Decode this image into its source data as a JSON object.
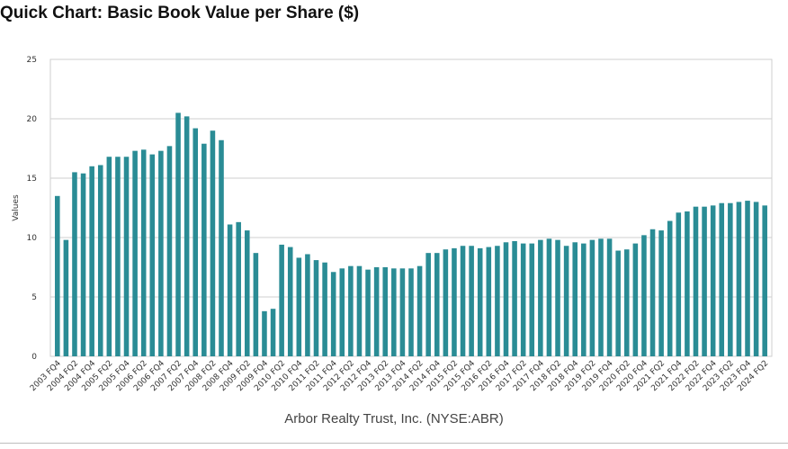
{
  "colors": {
    "bar": "#2a8c95",
    "grid": "#cfcfcf",
    "frame": "#cfcfcf"
  },
  "chart_data": {
    "type": "bar",
    "title": "Quick Chart: Basic Book Value per Share ($)",
    "subtitle": "Arbor Realty Trust, Inc. (NYSE:ABR)",
    "xlabel": "",
    "ylabel": "Values",
    "ylim": [
      0,
      25
    ],
    "yticks": [
      0,
      5,
      10,
      15,
      20,
      25
    ],
    "grid": true,
    "legend": "none",
    "x_tick_labels": [
      "2003 FQ4",
      "2004 FQ2",
      "2004 FQ4",
      "2005 FQ2",
      "2005 FQ4",
      "2006 FQ2",
      "2006 FQ4",
      "2007 FQ2",
      "2007 FQ4",
      "2008 FQ2",
      "2008 FQ4",
      "2009 FQ2",
      "2009 FQ4",
      "2010 FQ2",
      "2010 FQ4",
      "2011 FQ2",
      "2011 FQ4",
      "2012 FQ2",
      "2012 FQ4",
      "2013 FQ2",
      "2013 FQ4",
      "2014 FQ2",
      "2014 FQ4",
      "2015 FQ2",
      "2015 FQ4",
      "2016 FQ2",
      "2016 FQ4",
      "2017 FQ2",
      "2017 FQ4",
      "2018 FQ2",
      "2018 FQ4",
      "2019 FQ2",
      "2019 FQ4",
      "2020 FQ2",
      "2020 FQ4",
      "2021 FQ2",
      "2021 FQ4",
      "2022 FQ2",
      "2022 FQ4",
      "2023 FQ2",
      "2023 FQ4",
      "2024 FQ2"
    ],
    "categories": [
      "2003 FQ4",
      "2004 FQ1",
      "2004 FQ2",
      "2004 FQ3",
      "2004 FQ4",
      "2005 FQ1",
      "2005 FQ2",
      "2005 FQ3",
      "2005 FQ4",
      "2006 FQ1",
      "2006 FQ2",
      "2006 FQ3",
      "2006 FQ4",
      "2007 FQ1",
      "2007 FQ2",
      "2007 FQ3",
      "2007 FQ4",
      "2008 FQ1",
      "2008 FQ2",
      "2008 FQ3",
      "2008 FQ4",
      "2009 FQ1",
      "2009 FQ2",
      "2009 FQ3",
      "2009 FQ4",
      "2010 FQ1",
      "2010 FQ2",
      "2010 FQ3",
      "2010 FQ4",
      "2011 FQ1",
      "2011 FQ2",
      "2011 FQ3",
      "2011 FQ4",
      "2012 FQ1",
      "2012 FQ2",
      "2012 FQ3",
      "2012 FQ4",
      "2013 FQ1",
      "2013 FQ2",
      "2013 FQ3",
      "2013 FQ4",
      "2014 FQ1",
      "2014 FQ2",
      "2014 FQ3",
      "2014 FQ4",
      "2015 FQ1",
      "2015 FQ2",
      "2015 FQ3",
      "2015 FQ4",
      "2016 FQ1",
      "2016 FQ2",
      "2016 FQ3",
      "2016 FQ4",
      "2017 FQ1",
      "2017 FQ2",
      "2017 FQ3",
      "2017 FQ4",
      "2018 FQ1",
      "2018 FQ2",
      "2018 FQ3",
      "2018 FQ4",
      "2019 FQ1",
      "2019 FQ2",
      "2019 FQ3",
      "2019 FQ4",
      "2020 FQ1",
      "2020 FQ2",
      "2020 FQ3",
      "2020 FQ4",
      "2021 FQ1",
      "2021 FQ2",
      "2021 FQ3",
      "2021 FQ4",
      "2022 FQ1",
      "2022 FQ2",
      "2022 FQ3",
      "2022 FQ4",
      "2023 FQ1",
      "2023 FQ2",
      "2023 FQ3",
      "2023 FQ4",
      "2024 FQ1",
      "2024 FQ2"
    ],
    "values": [
      13.5,
      9.8,
      15.5,
      15.4,
      16.0,
      16.1,
      16.8,
      16.8,
      16.8,
      17.3,
      17.4,
      17.0,
      17.3,
      17.7,
      20.5,
      20.2,
      19.2,
      17.9,
      19.0,
      18.2,
      11.1,
      11.3,
      10.6,
      8.7,
      3.8,
      4.0,
      9.4,
      9.2,
      8.3,
      8.6,
      8.1,
      7.9,
      7.1,
      7.4,
      7.6,
      7.6,
      7.3,
      7.5,
      7.5,
      7.4,
      7.4,
      7.4,
      7.6,
      8.7,
      8.7,
      9.0,
      9.1,
      9.3,
      9.3,
      9.1,
      9.2,
      9.3,
      9.6,
      9.7,
      9.5,
      9.5,
      9.8,
      9.9,
      9.8,
      9.3,
      9.6,
      9.5,
      9.8,
      9.9,
      9.9,
      8.9,
      9.0,
      9.5,
      10.2,
      10.7,
      10.6,
      11.4,
      12.1,
      12.2,
      12.6,
      12.6,
      12.7,
      12.9,
      12.9,
      13.0,
      13.1,
      13.0,
      12.7
    ]
  }
}
